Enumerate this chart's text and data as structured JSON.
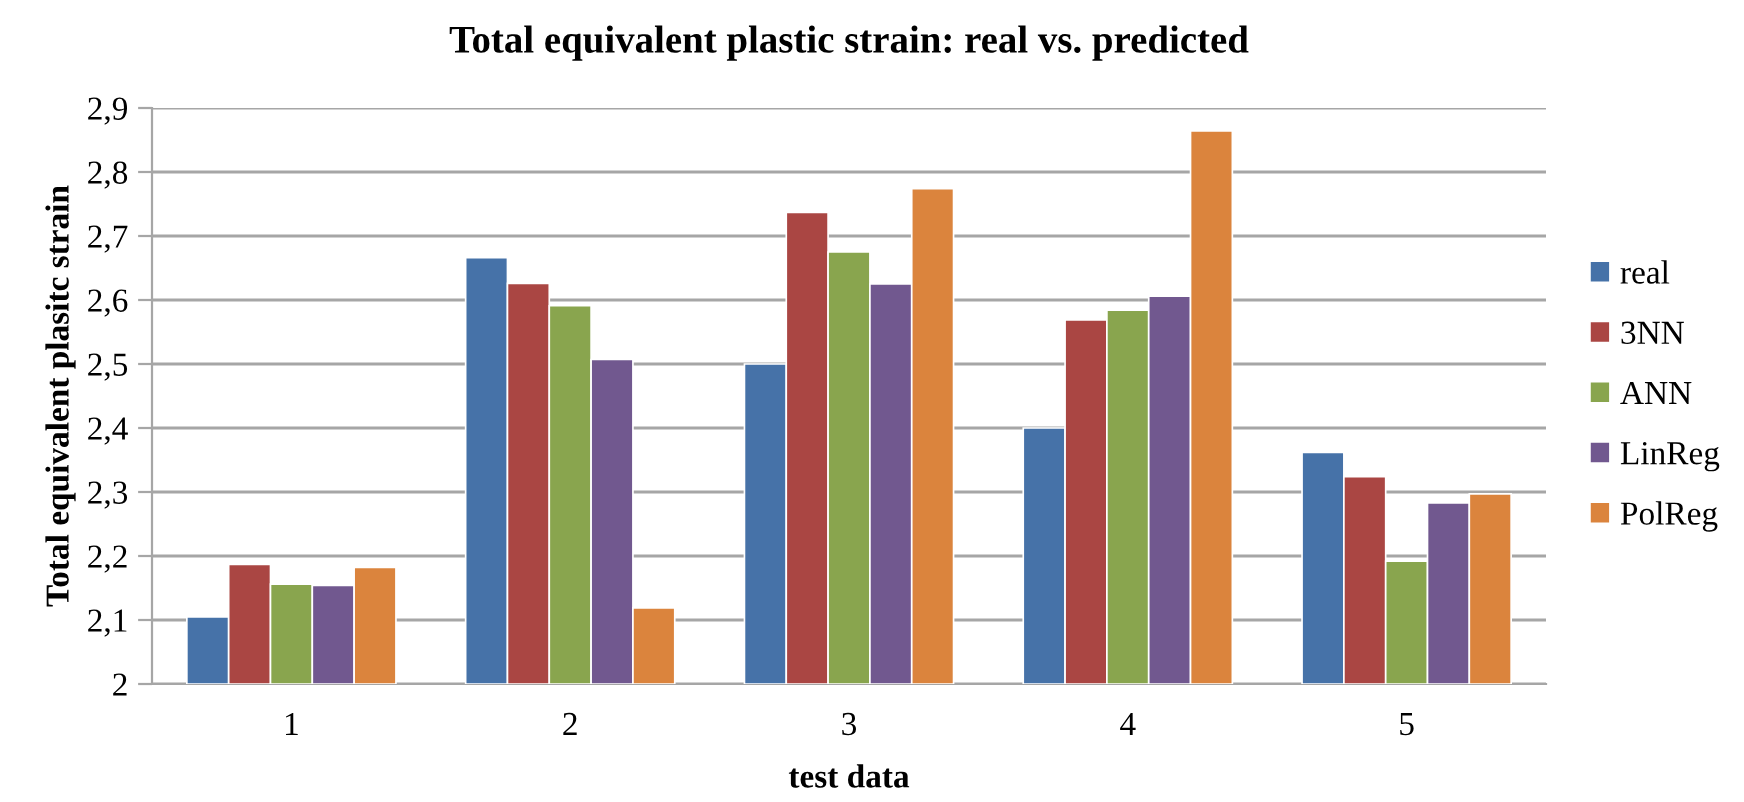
{
  "chart_data": {
    "type": "bar",
    "title": "Total equivalent plastic strain: real vs. predicted",
    "xlabel": "test data",
    "ylabel": "Total equivalent plasitc strain",
    "categories": [
      "1",
      "2",
      "3",
      "4",
      "5"
    ],
    "series": [
      {
        "name": "real",
        "color": "#4672a8",
        "values": [
          2.105,
          2.666,
          2.5,
          2.4,
          2.362
        ]
      },
      {
        "name": "3NN",
        "color": "#aa4643",
        "values": [
          2.187,
          2.626,
          2.737,
          2.569,
          2.324
        ]
      },
      {
        "name": "ANN",
        "color": "#89a54e",
        "values": [
          2.156,
          2.591,
          2.675,
          2.584,
          2.192
        ]
      },
      {
        "name": "LinReg",
        "color": "#71588f",
        "values": [
          2.154,
          2.507,
          2.625,
          2.606,
          2.283
        ]
      },
      {
        "name": "PolReg",
        "color": "#db843d",
        "values": [
          2.182,
          2.119,
          2.774,
          2.864,
          2.297
        ]
      }
    ],
    "ylim": [
      2,
      2.9
    ],
    "yticks": [
      2,
      {
        "value": 2.1,
        "label": "2,1"
      },
      {
        "value": 2.2,
        "label": "2,2"
      },
      {
        "value": 2.3,
        "label": "2,3"
      },
      {
        "value": 2.4,
        "label": "2,4"
      },
      {
        "value": 2.5,
        "label": "2,5"
      },
      {
        "value": 2.6,
        "label": "2,6"
      },
      {
        "value": 2.7,
        "label": "2,7"
      },
      {
        "value": 2.8,
        "label": "2,8"
      },
      {
        "value": 2.9,
        "label": "2,9"
      }
    ],
    "grid": "y",
    "legend": "right"
  }
}
